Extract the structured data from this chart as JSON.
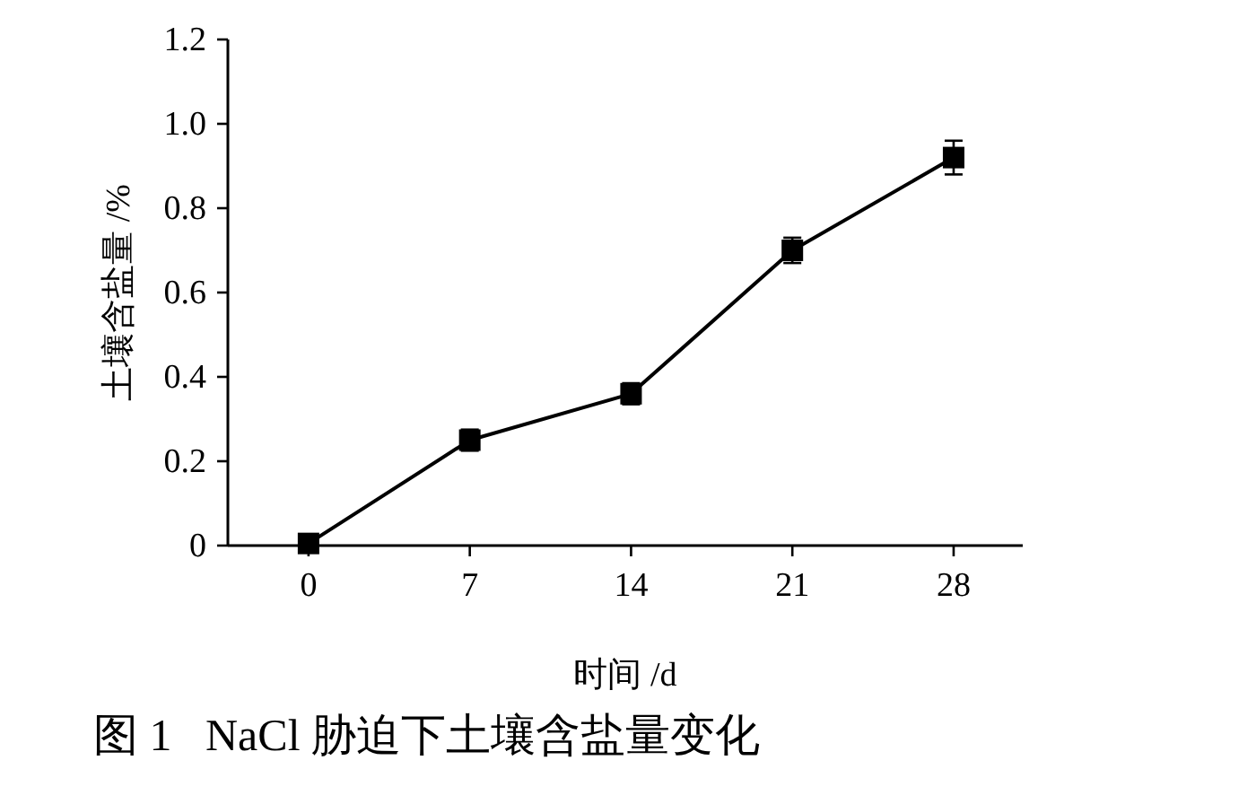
{
  "chart_data": {
    "type": "line",
    "xlabel": "时间 /d",
    "ylabel": "土壤含盐量 /%",
    "x": [
      0,
      7,
      14,
      21,
      28
    ],
    "series": [
      {
        "color": "#000000",
        "values": [
          0.005,
          0.25,
          0.36,
          0.7,
          0.92
        ],
        "errors": [
          0.01,
          0.025,
          0.025,
          0.03,
          0.04
        ]
      }
    ],
    "xlim": [
      -3.5,
      31
    ],
    "xticks": [
      0,
      7,
      14,
      21,
      28
    ],
    "ylim": [
      0,
      1.2
    ],
    "yticks": [
      0,
      0.2,
      0.4,
      0.6,
      0.8,
      {
        "value": 1,
        "label": "1.0"
      },
      1.2
    ],
    "marker": "square",
    "line_style": "solid",
    "annotations": [
      "图 1   NaCl 胁迫下土壤含盐量变化"
    ]
  }
}
